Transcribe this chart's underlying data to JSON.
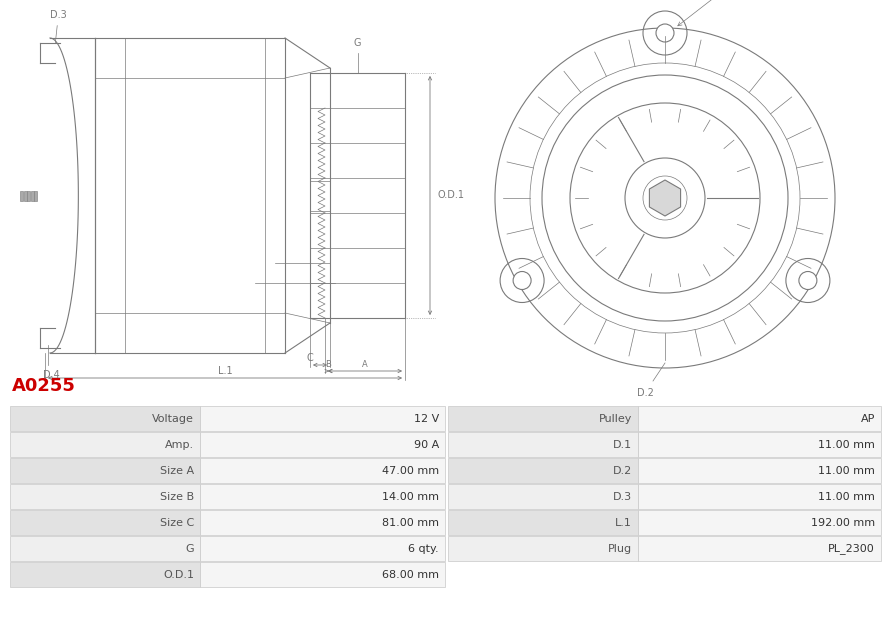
{
  "title": "A0255",
  "title_color": "#cc0000",
  "bg_color": "#ffffff",
  "table_left": {
    "rows": [
      [
        "Voltage",
        "12 V"
      ],
      [
        "Amp.",
        "90 A"
      ],
      [
        "Size A",
        "47.00 mm"
      ],
      [
        "Size B",
        "14.00 mm"
      ],
      [
        "Size C",
        "81.00 mm"
      ],
      [
        "G",
        "6 qty."
      ],
      [
        "O.D.1",
        "68.00 mm"
      ]
    ]
  },
  "table_right": {
    "rows": [
      [
        "Pulley",
        "AP"
      ],
      [
        "D.1",
        "11.00 mm"
      ],
      [
        "D.2",
        "11.00 mm"
      ],
      [
        "D.3",
        "11.00 mm"
      ],
      [
        "L.1",
        "192.00 mm"
      ],
      [
        "Plug",
        "PL_2300"
      ]
    ]
  },
  "row_colors": [
    "#e2e2e2",
    "#efefef"
  ],
  "border_color": "#c8c8c8",
  "text_color": "#555555",
  "diagram_line_color": "#7a7a7a",
  "dim_color": "#7a7a7a"
}
